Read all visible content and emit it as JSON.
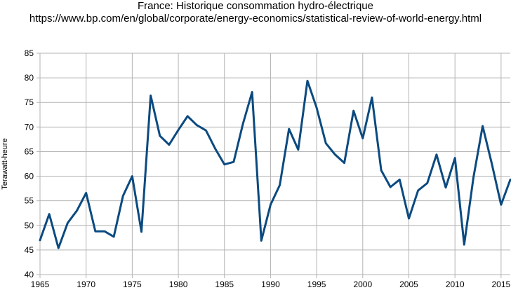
{
  "chart_data": {
    "type": "line",
    "title": "France: Historique consommation hydro-électrique",
    "subtitle": "https://www.bp.com/en/global/corporate/energy-economics/statistical-review-of-world-energy.html",
    "xlabel": "",
    "ylabel": "Terawatt-heure",
    "xlim": [
      1965,
      2016
    ],
    "ylim": [
      40,
      85
    ],
    "xticks": [
      1965,
      1970,
      1975,
      1980,
      1985,
      1990,
      1995,
      2000,
      2005,
      2010,
      2015
    ],
    "xtick_labels": [
      "1965",
      "1970",
      "1975",
      "1980",
      "1985",
      "1990",
      "1995",
      "2000",
      "2005",
      "2010",
      "2015"
    ],
    "yticks": [
      40,
      45,
      50,
      55,
      60,
      65,
      70,
      75,
      80,
      85
    ],
    "grid": true,
    "legend": "none",
    "line_color": "#0b4a80",
    "x": [
      1965,
      1966,
      1967,
      1968,
      1969,
      1970,
      1971,
      1972,
      1973,
      1974,
      1975,
      1976,
      1977,
      1978,
      1979,
      1980,
      1981,
      1982,
      1983,
      1984,
      1985,
      1986,
      1987,
      1988,
      1989,
      1990,
      1991,
      1992,
      1993,
      1994,
      1995,
      1996,
      1997,
      1998,
      1999,
      2000,
      2001,
      2002,
      2003,
      2004,
      2005,
      2006,
      2007,
      2008,
      2009,
      2010,
      2011,
      2012,
      2013,
      2014,
      2015,
      2016
    ],
    "y": [
      47.0,
      52.3,
      45.4,
      50.5,
      53.0,
      56.6,
      48.8,
      48.8,
      47.7,
      56.0,
      60.0,
      48.7,
      76.4,
      68.2,
      66.4,
      69.4,
      72.2,
      70.4,
      69.3,
      65.6,
      62.4,
      62.9,
      70.6,
      77.1,
      46.9,
      54.2,
      58.2,
      69.6,
      65.4,
      79.4,
      73.9,
      66.7,
      64.4,
      62.7,
      73.3,
      67.7,
      76.0,
      61.2,
      57.8,
      59.3,
      51.4,
      57.1,
      58.6,
      64.4,
      57.7,
      63.7,
      46.1,
      59.7,
      70.2,
      62.5,
      54.2,
      59.3
    ]
  }
}
